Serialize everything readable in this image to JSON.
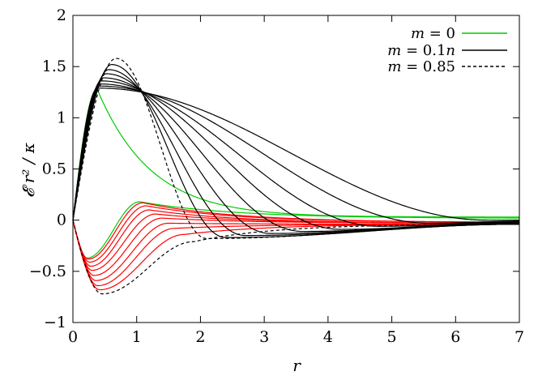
{
  "chart_data": {
    "type": "line",
    "xlabel": "r",
    "ylabel": "𝓔 r² / κ",
    "xlim": [
      0,
      7
    ],
    "ylim": [
      -1,
      2
    ],
    "x_ticks": [
      "0",
      "1",
      "2",
      "3",
      "4",
      "5",
      "6",
      "7"
    ],
    "y_ticks": [
      "−1",
      "−0.5",
      "0",
      "0.5",
      "1",
      "1.5",
      "2"
    ],
    "grid": false,
    "legend_position": "top-right",
    "legend": [
      {
        "label_var": "m",
        "label_rest": " = 0",
        "color": "#00cc00",
        "style": "solid"
      },
      {
        "label_var": "m",
        "label_rest": " = 0.1",
        "label_var2": "n",
        "color": "#000000",
        "style": "solid"
      },
      {
        "label_var": "m",
        "label_rest": " = 0.85",
        "color": "#000000",
        "style": "dashed"
      }
    ],
    "curve_families": {
      "upper": {
        "color_massless": "#00cc00",
        "color_massive": "#000000",
        "masses": [
          0,
          0.1,
          0.2,
          0.3,
          0.4,
          0.5,
          0.6,
          0.7,
          0.8,
          0.85
        ],
        "peak_x": [
          0.38,
          0.39,
          0.41,
          0.43,
          0.45,
          0.48,
          0.52,
          0.56,
          0.61,
          0.68
        ],
        "peak_y": [
          1.28,
          1.29,
          1.31,
          1.33,
          1.36,
          1.39,
          1.43,
          1.47,
          1.52,
          1.58
        ],
        "min_x": [
          null,
          6.5,
          5.6,
          4.8,
          4.2,
          3.6,
          3.1,
          2.7,
          2.4,
          2.1
        ],
        "min_y": [
          null,
          0.0,
          -0.03,
          -0.06,
          -0.09,
          -0.11,
          -0.13,
          -0.15,
          -0.17,
          -0.18
        ],
        "tail_at_7": [
          0.03,
          -0.0,
          -0.01,
          -0.02,
          -0.02,
          -0.03,
          -0.03,
          -0.04,
          -0.04,
          -0.04
        ]
      },
      "lower": {
        "color_massless": "#00cc00",
        "color_massive": "#ff0000",
        "masses": [
          0,
          0.1,
          0.2,
          0.3,
          0.4,
          0.5,
          0.6,
          0.7,
          0.8,
          0.85
        ],
        "min_x": [
          0.22,
          0.24,
          0.26,
          0.28,
          0.3,
          0.33,
          0.36,
          0.39,
          0.42,
          0.46
        ],
        "min_y": [
          -0.37,
          -0.38,
          -0.41,
          -0.45,
          -0.49,
          -0.54,
          -0.59,
          -0.64,
          -0.68,
          -0.72
        ],
        "max_x": [
          1.05,
          1.1,
          1.15,
          1.2,
          1.3,
          1.4,
          1.5,
          1.6,
          1.75,
          1.9
        ],
        "max_y": [
          0.18,
          0.17,
          0.14,
          0.1,
          0.06,
          0.02,
          -0.03,
          -0.08,
          -0.14,
          -0.21
        ],
        "tail_at_7": [
          0.02,
          -0.02,
          -0.02,
          -0.03,
          -0.03,
          -0.03,
          -0.04,
          -0.04,
          -0.04,
          -0.04
        ]
      }
    }
  }
}
